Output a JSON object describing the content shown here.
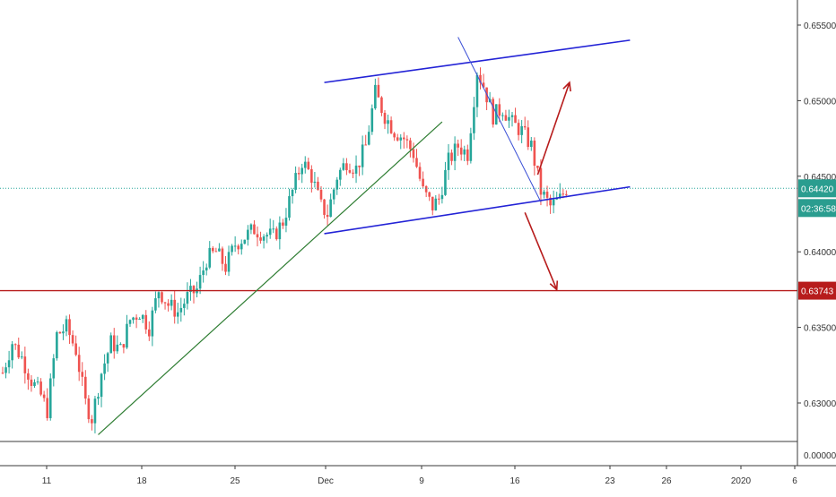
{
  "chart_data": {
    "type": "candlestick",
    "instrument_note": "",
    "y_axis": {
      "ticks": [
        "0.65500",
        "0.65000",
        "0.64500",
        "0.64000",
        "0.63500",
        "0.63000"
      ],
      "tick_values": [
        0.655,
        0.65,
        0.645,
        0.64,
        0.635,
        0.63
      ],
      "ylim": [
        0.6265,
        0.6575
      ],
      "lower_pane_tick": "0.00000"
    },
    "x_axis": {
      "labels": [
        "11",
        "18",
        "25",
        "Dec",
        "9",
        "16",
        "23",
        "26",
        "2020",
        "6"
      ]
    },
    "current_price": {
      "label": "0.64420",
      "value": 0.6442,
      "countdown": "02:36:58"
    },
    "horizontal_level": {
      "label": "0.63743",
      "value": 0.63743
    },
    "candles": [],
    "series_seed": {
      "anchors": [
        [
          0,
          0.632
        ],
        [
          3,
          0.634
        ],
        [
          6,
          0.633
        ],
        [
          9,
          0.6315
        ],
        [
          12,
          0.6305
        ],
        [
          14,
          0.6295
        ],
        [
          17,
          0.6345
        ],
        [
          20,
          0.635
        ],
        [
          23,
          0.6335
        ],
        [
          26,
          0.63
        ],
        [
          28,
          0.629
        ],
        [
          31,
          0.632
        ],
        [
          34,
          0.634
        ],
        [
          37,
          0.6335
        ],
        [
          40,
          0.6355
        ],
        [
          43,
          0.636
        ],
        [
          46,
          0.635
        ],
        [
          49,
          0.6375
        ],
        [
          52,
          0.6365
        ],
        [
          55,
          0.636
        ],
        [
          58,
          0.637
        ],
        [
          61,
          0.6375
        ],
        [
          64,
          0.6395
        ],
        [
          67,
          0.64
        ],
        [
          70,
          0.639
        ],
        [
          73,
          0.6405
        ],
        [
          76,
          0.641
        ],
        [
          79,
          0.6415
        ],
        [
          82,
          0.6412
        ],
        [
          85,
          0.641
        ],
        [
          88,
          0.642
        ],
        [
          91,
          0.644
        ],
        [
          94,
          0.646
        ],
        [
          97,
          0.645
        ],
        [
          100,
          0.643
        ],
        [
          102,
          0.6425
        ],
        [
          105,
          0.645
        ],
        [
          108,
          0.646
        ],
        [
          111,
          0.6455
        ],
        [
          114,
          0.647
        ],
        [
          117,
          0.6505
        ],
        [
          120,
          0.649
        ],
        [
          123,
          0.648
        ],
        [
          126,
          0.6475
        ],
        [
          129,
          0.6465
        ],
        [
          132,
          0.644
        ],
        [
          135,
          0.643
        ],
        [
          137,
          0.6435
        ],
        [
          140,
          0.646
        ],
        [
          143,
          0.647
        ],
        [
          146,
          0.6465
        ],
        [
          149,
          0.652
        ],
        [
          151,
          0.651
        ],
        [
          154,
          0.649
        ],
        [
          157,
          0.6495
        ],
        [
          160,
          0.6485
        ],
        [
          163,
          0.648
        ],
        [
          166,
          0.647
        ],
        [
          169,
          0.644
        ],
        [
          172,
          0.643
        ],
        [
          175,
          0.6435
        ],
        [
          177,
          0.6442
        ]
      ],
      "count": 178
    },
    "drawings": {
      "upper_channel": {
        "color": "#2323d6",
        "from": [
          101,
          0.6512
        ],
        "to": [
          197,
          0.654
        ]
      },
      "lower_channel": {
        "color": "#2323d6",
        "from": [
          101,
          0.6412
        ],
        "to": [
          197,
          0.6443
        ]
      },
      "green_trendline": {
        "color": "#2e7d32",
        "from": [
          30,
          0.6279
        ],
        "to": [
          138,
          0.6486
        ]
      },
      "blue_downtrend": {
        "color": "#3a4fd6",
        "from": [
          143,
          0.6542
        ],
        "to": [
          169,
          0.6433
        ]
      },
      "arrow_up": {
        "color": "#b71c1c",
        "from": [
          168,
          0.6451
        ],
        "to": [
          178,
          0.6512
        ]
      },
      "arrow_down": {
        "color": "#b71c1c",
        "from": [
          164,
          0.6426
        ],
        "to": [
          174,
          0.6375
        ]
      }
    },
    "colors": {
      "bull": "#26a69a",
      "bear": "#ef5350",
      "price_line": "#26a69a",
      "level_line": "#b71c1c",
      "price_label_bg": "#2a9d8f",
      "level_label_bg": "#b71c1c"
    }
  }
}
